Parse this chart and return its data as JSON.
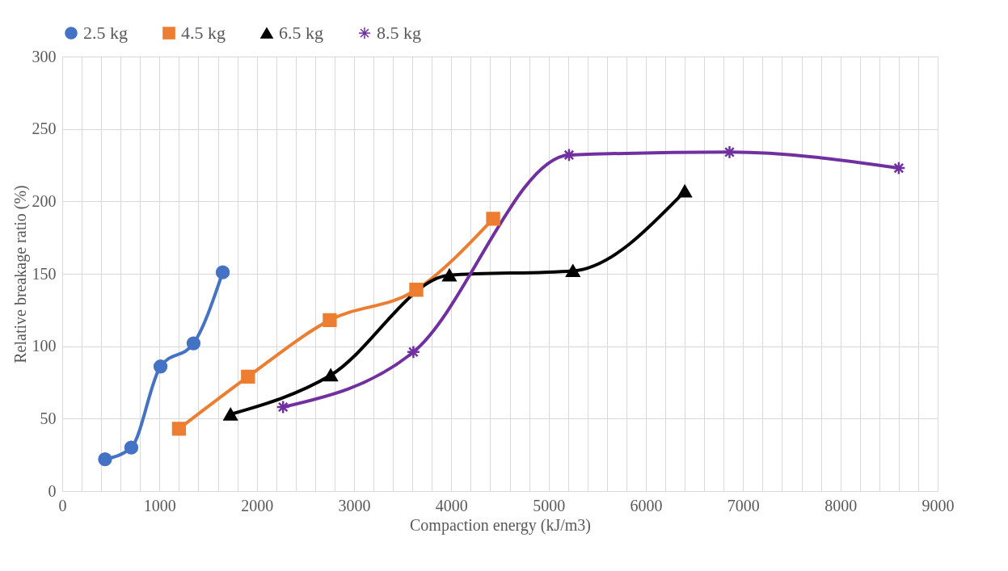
{
  "chart_data": {
    "type": "line",
    "xlabel": "Compaction energy (kJ/m3)",
    "ylabel": "Relative breakage ratio (%)",
    "xlim": [
      0,
      9000
    ],
    "ylim": [
      0,
      300
    ],
    "xticks": [
      0,
      {
        "value": 200,
        "label": null
      },
      {
        "value": 400,
        "label": null
      },
      {
        "value": 600,
        "label": null
      },
      {
        "value": 800,
        "label": null
      },
      1000,
      {
        "value": 1200,
        "label": null
      },
      {
        "value": 1400,
        "label": null
      },
      {
        "value": 1600,
        "label": null
      },
      {
        "value": 1800,
        "label": null
      },
      2000,
      {
        "value": 2200,
        "label": null
      },
      {
        "value": 2400,
        "label": null
      },
      {
        "value": 2600,
        "label": null
      },
      {
        "value": 2800,
        "label": null
      },
      3000,
      {
        "value": 3200,
        "label": null
      },
      {
        "value": 3400,
        "label": null
      },
      {
        "value": 3600,
        "label": null
      },
      {
        "value": 3800,
        "label": null
      },
      4000,
      {
        "value": 4200,
        "label": null
      },
      {
        "value": 4400,
        "label": null
      },
      {
        "value": 4600,
        "label": null
      },
      {
        "value": 4800,
        "label": null
      },
      5000,
      {
        "value": 5200,
        "label": null
      },
      {
        "value": 5400,
        "label": null
      },
      {
        "value": 5600,
        "label": null
      },
      {
        "value": 5800,
        "label": null
      },
      6000,
      {
        "value": 6200,
        "label": null
      },
      {
        "value": 6400,
        "label": null
      },
      {
        "value": 6600,
        "label": null
      },
      {
        "value": 6800,
        "label": null
      },
      7000,
      {
        "value": 7200,
        "label": null
      },
      {
        "value": 7400,
        "label": null
      },
      {
        "value": 7600,
        "label": null
      },
      {
        "value": 7800,
        "label": null
      },
      8000,
      {
        "value": 8200,
        "label": null
      },
      {
        "value": 8400,
        "label": null
      },
      {
        "value": 8600,
        "label": null
      },
      {
        "value": 8800,
        "label": null
      },
      9000
    ],
    "yticks": [
      0,
      50,
      100,
      150,
      200,
      250,
      300
    ],
    "grid": true,
    "legend": "top",
    "line_style": "solid",
    "series": [
      {
        "name": "2.5 kg",
        "color": "#4472c4",
        "marker": "circle",
        "x": [
          440,
          710,
          1010,
          1350,
          1650
        ],
        "values": [
          22,
          30,
          86,
          102,
          151
        ]
      },
      {
        "name": "4.5 kg",
        "color": "#ed7d31",
        "marker": "square",
        "x": [
          1200,
          1910,
          2750,
          3640,
          4430
        ],
        "values": [
          43,
          79,
          118,
          139,
          188
        ]
      },
      {
        "name": "6.5 kg",
        "color": "#000000",
        "marker": "triangle",
        "x": [
          1730,
          2760,
          3980,
          5250,
          6400
        ],
        "values": [
          53,
          80,
          149,
          152,
          207
        ]
      },
      {
        "name": "8.5 kg",
        "color": "#7030a0",
        "marker": "cross",
        "x": [
          2270,
          3610,
          5210,
          6860,
          8600
        ],
        "values": [
          58,
          96,
          232,
          234,
          223
        ]
      }
    ]
  }
}
